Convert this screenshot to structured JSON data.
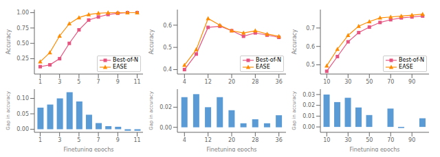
{
  "chart_data": [
    {
      "type": "line",
      "x": [
        1,
        2,
        3,
        4,
        5,
        6,
        7,
        8,
        9,
        10,
        11
      ],
      "series": [
        {
          "name": "Best-of-N",
          "color": "#e75480",
          "marker": "square",
          "values": [
            0.12,
            0.15,
            0.25,
            0.5,
            0.72,
            0.88,
            0.93,
            0.97,
            0.99,
            1.0,
            1.0
          ]
        },
        {
          "name": "EASE",
          "color": "#ff8c00",
          "marker": "triangle",
          "values": [
            0.2,
            0.35,
            0.62,
            0.82,
            0.92,
            0.97,
            0.99,
            1.0,
            1.0,
            1.0,
            1.0
          ]
        }
      ],
      "xlim": [
        0.4,
        11.6
      ],
      "ylim": [
        0.0,
        1.05
      ],
      "xticks": [
        1,
        3,
        5,
        7,
        9,
        11
      ],
      "yticks": [
        0.25,
        {
          "value": 0.5,
          "label": "0.50"
        },
        0.75,
        {
          "value": 1.0,
          "label": "1.00"
        }
      ],
      "y_label": "Accuracy",
      "legend": "lower right"
    },
    {
      "type": "bar",
      "x": [
        1,
        2,
        3,
        4,
        5,
        6,
        7,
        8,
        9,
        10,
        11
      ],
      "values": [
        0.07,
        0.08,
        0.1,
        0.12,
        0.09,
        0.047,
        0.02,
        0.01,
        0.008,
        -0.005,
        -0.005
      ],
      "color": "#5b9bd5",
      "xlim": [
        0.4,
        11.6
      ],
      "ylim": [
        -0.01,
        0.13
      ],
      "xticks": [
        1,
        3,
        5,
        7,
        9,
        11
      ],
      "yticks": [
        {
          "value": 0.0,
          "label": "0.00"
        },
        0.05,
        {
          "value": 0.1,
          "label": "0.10"
        }
      ],
      "x_label": "Finetuning epochs",
      "y_label": "Gap in accuracy"
    },
    {
      "type": "line",
      "x": [
        4,
        8,
        12,
        16,
        20,
        24,
        28,
        32,
        36
      ],
      "series": [
        {
          "name": "Best-of-N",
          "color": "#e75480",
          "marker": "square",
          "values": [
            0.4,
            0.47,
            0.59,
            0.595,
            0.575,
            0.55,
            0.565,
            0.555,
            0.545
          ]
        },
        {
          "name": "EASE",
          "color": "#ff8c00",
          "marker": "triangle",
          "values": [
            0.42,
            0.49,
            0.63,
            0.6,
            0.575,
            0.565,
            0.575,
            0.56,
            0.55
          ]
        }
      ],
      "xlim": [
        1.6,
        38.4
      ],
      "ylim": [
        0.38,
        0.67
      ],
      "xticks": [
        4,
        12,
        20,
        28,
        36
      ],
      "yticks": [
        0.4,
        0.5,
        0.6
      ],
      "y_label": "Accuracy",
      "legend": "lower right"
    },
    {
      "type": "bar",
      "x": [
        4,
        8,
        12,
        16,
        20,
        24,
        28,
        32,
        36
      ],
      "values": [
        0.03,
        0.033,
        0.02,
        0.03,
        0.017,
        0.004,
        0.008,
        0.004,
        0.012
      ],
      "color": "#5b9bd5",
      "xlim": [
        1.6,
        38.4
      ],
      "ylim": [
        -0.005,
        0.038
      ],
      "xticks": [
        4,
        12,
        20,
        28,
        36
      ],
      "yticks": [
        {
          "value": 0.0,
          "label": "0.00"
        },
        0.02
      ],
      "x_label": "Finetuning epochs",
      "y_label": "Gap in accuracy"
    },
    {
      "type": "line",
      "x": [
        10,
        20,
        30,
        40,
        50,
        60,
        70,
        80,
        90,
        100
      ],
      "series": [
        {
          "name": "Best-of-N",
          "color": "#e75480",
          "marker": "square",
          "values": [
            0.465,
            0.545,
            0.625,
            0.675,
            0.705,
            0.73,
            0.745,
            0.755,
            0.76,
            0.765
          ]
        },
        {
          "name": "EASE",
          "color": "#ff8c00",
          "marker": "triangle",
          "values": [
            0.495,
            0.585,
            0.66,
            0.71,
            0.735,
            0.755,
            0.76,
            0.765,
            0.77,
            0.775
          ]
        }
      ],
      "xlim": [
        4,
        106
      ],
      "ylim": [
        0.45,
        0.8
      ],
      "xticks": [
        10,
        30,
        50,
        70,
        90
      ],
      "yticks": [
        0.5,
        0.6,
        0.7
      ],
      "y_label": "Accuracy",
      "legend": "lower right"
    },
    {
      "type": "bar",
      "x": [
        10,
        20,
        30,
        40,
        50,
        60,
        70,
        80,
        90,
        100
      ],
      "values": [
        0.03,
        0.023,
        0.027,
        0.018,
        0.011,
        0.0,
        0.017,
        -0.001,
        0.0,
        0.008
      ],
      "color": "#5b9bd5",
      "xlim": [
        4,
        106
      ],
      "ylim": [
        -0.005,
        0.035
      ],
      "xticks": [
        10,
        30,
        50,
        70,
        90
      ],
      "yticks": [
        {
          "value": 0.0,
          "label": "0.00"
        },
        0.01,
        0.02,
        0.03
      ],
      "x_label": "Finetuning epochs",
      "y_label": "Gap in accuracy"
    }
  ]
}
